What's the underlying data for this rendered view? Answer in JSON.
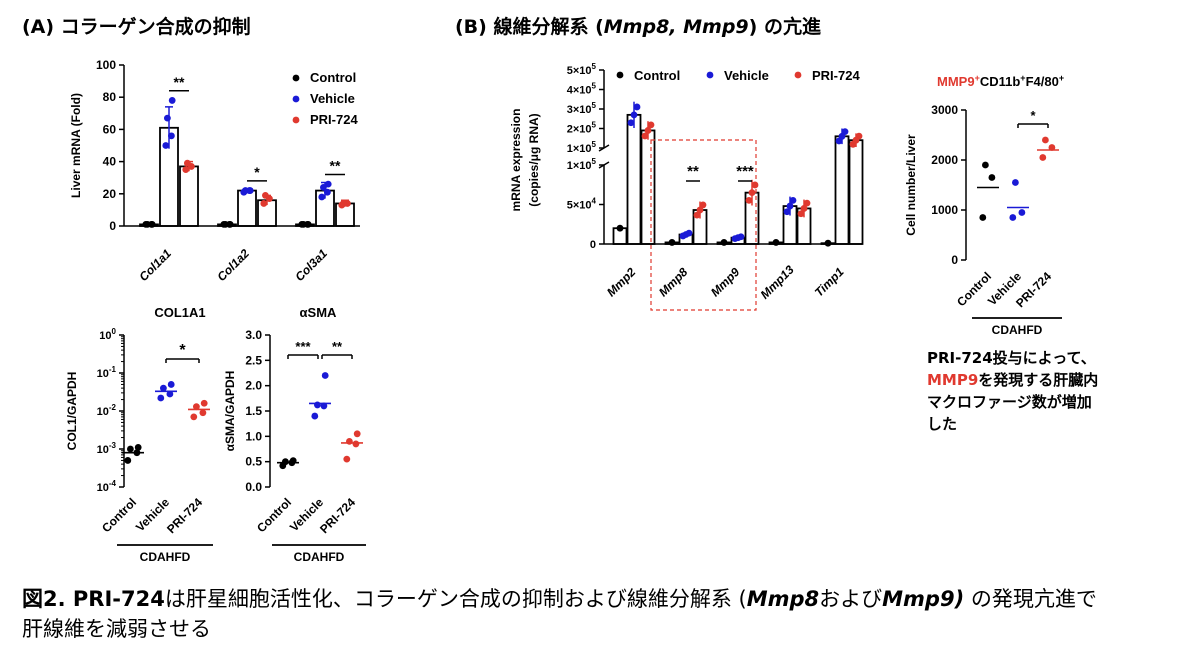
{
  "panel_a_title": "(A) コラーゲン合成の抑制",
  "panel_b_title_pre": "(B) 線維分解系 (",
  "panel_b_title_italic": "Mmp8, Mmp9",
  "panel_b_title_post": ") の亢進",
  "caption": {
    "p1": "図2. PRI-724",
    "p2": "は肝星細胞活性化、コラーゲン合成の抑制および線維分解系 (",
    "p3": "Mmp8",
    "p4": "および",
    "p5": "Mmp9)",
    "p6": " の発現亢進で",
    "line2": "肝線維を減弱させる"
  },
  "note": {
    "line1": "PRI-724投与によって、",
    "red": "MMP9",
    "line2_rest": "を発現する肝臓内",
    "line3": "マクロファージ数が増加",
    "line4": "した"
  },
  "colors": {
    "control": "#000000",
    "vehicle": "#1a1ad6",
    "pri724": "#e0392f"
  },
  "chart_data": [
    {
      "id": "liver-mrna",
      "type": "bar",
      "ylabel": "Liver mRNA (Fold)",
      "ylim": [
        0,
        100
      ],
      "yticks": [
        0,
        20,
        40,
        60,
        80,
        100
      ],
      "categories": [
        "Col1a1",
        "Col1a2",
        "Col3a1"
      ],
      "legend": {
        "position": "top-right",
        "entries": [
          "Control",
          "Vehicle",
          "PRI-724"
        ]
      },
      "series": [
        {
          "name": "Control",
          "values": [
            1,
            1,
            1
          ]
        },
        {
          "name": "Vehicle",
          "values": [
            61,
            22,
            22
          ]
        },
        {
          "name": "PRI-724",
          "values": [
            37,
            16,
            14
          ]
        }
      ],
      "errors": [
        [
          0,
          0,
          0
        ],
        [
          13,
          1,
          5
        ],
        [
          3,
          3,
          2
        ]
      ],
      "points": [
        [
          [
            1,
            1,
            1,
            1
          ],
          [
            1,
            1,
            1,
            1
          ],
          [
            1,
            1,
            1,
            1
          ]
        ],
        [
          [
            50,
            56,
            67,
            78
          ],
          [
            21,
            22,
            22,
            22
          ],
          [
            18,
            21,
            24,
            26
          ]
        ],
        [
          [
            35,
            37,
            39
          ],
          [
            14,
            17,
            19
          ],
          [
            13,
            14,
            14
          ]
        ]
      ],
      "significance": [
        {
          "category": 0,
          "label": "**"
        },
        {
          "category": 1,
          "label": "*"
        },
        {
          "category": 2,
          "label": "**"
        }
      ]
    },
    {
      "id": "col1a1",
      "type": "scatter",
      "title": "COL1A1",
      "ylabel": "COL1/GAPDH",
      "yscale": "log",
      "ylim": [
        0.0001,
        1
      ],
      "yticks": [
        "10^0",
        "10^-1",
        "10^-2",
        "10^-3",
        "10^-4"
      ],
      "categories": [
        "Control",
        "Vehicle",
        "PRI-724"
      ],
      "group_label": "CDAHFD",
      "points": [
        [
          0.0005,
          0.0008,
          0.001,
          0.0011
        ],
        [
          0.022,
          0.028,
          0.04,
          0.05
        ],
        [
          0.007,
          0.009,
          0.013,
          0.016
        ]
      ],
      "means": [
        0.0008,
        0.033,
        0.011
      ],
      "significance": [
        {
          "from": 1,
          "to": 2,
          "label": "*"
        }
      ]
    },
    {
      "id": "asma",
      "type": "scatter",
      "title": "αSMA",
      "ylabel": "αSMA/GAPDH",
      "ylim": [
        0,
        3.0
      ],
      "yticks": [
        "0.0",
        "0.5",
        "1.0",
        "1.5",
        "2.0",
        "2.5",
        "3.0"
      ],
      "categories": [
        "Control",
        "Vehicle",
        "PRI-724"
      ],
      "group_label": "CDAHFD",
      "points": [
        [
          0.42,
          0.48,
          0.5,
          0.52
        ],
        [
          1.4,
          1.6,
          1.62,
          2.2
        ],
        [
          0.55,
          0.85,
          0.9,
          1.05
        ]
      ],
      "means": [
        0.48,
        1.65,
        0.87
      ],
      "significance": [
        {
          "from": 0,
          "to": 1,
          "label": "***"
        },
        {
          "from": 1,
          "to": 2,
          "label": "**"
        }
      ]
    },
    {
      "id": "mmp-expression",
      "type": "bar",
      "ylabel": "mRNA expression (copies/μg RNA)",
      "axis_break": true,
      "upper_yticks": [
        "5×10^5",
        "4×10^5",
        "3×10^5",
        "2×10^5",
        "1×10^5"
      ],
      "lower_yticks": [
        "1×10^5",
        "5×10^4",
        "0"
      ],
      "categories": [
        "Mmp2",
        "Mmp8",
        "Mmp9",
        "Mmp13",
        "Timp1"
      ],
      "legend": {
        "position": "top",
        "entries": [
          "Control",
          "Vehicle",
          "PRI-724"
        ]
      },
      "series": [
        {
          "name": "Control",
          "values": [
            20000,
            2000,
            2000,
            2000,
            1000
          ]
        },
        {
          "name": "Vehicle",
          "values": [
            270000,
            12000,
            8000,
            48000,
            160000
          ]
        },
        {
          "name": "PRI-724",
          "values": [
            190000,
            43000,
            65000,
            45000,
            140000
          ]
        }
      ],
      "significance": [
        {
          "category": 1,
          "label": "**"
        },
        {
          "category": 2,
          "label": "***"
        }
      ]
    },
    {
      "id": "mmp9-cells",
      "type": "scatter",
      "title_red": "MMP9",
      "title_rest_1": "CD11b",
      "title_rest_2": "F4/80",
      "ylabel": "Cell number/Liver",
      "ylim": [
        0,
        3000
      ],
      "yticks": [
        "0",
        "1000",
        "2000",
        "3000"
      ],
      "categories": [
        "Control",
        "Vehicle",
        "PRI-724"
      ],
      "group_label": "CDAHFD",
      "points": [
        [
          850,
          1650,
          1900
        ],
        [
          850,
          950,
          1550
        ],
        [
          2050,
          2250,
          2400
        ]
      ],
      "means": [
        1450,
        1050,
        2200
      ],
      "significance": [
        {
          "from": 1,
          "to": 2,
          "label": "*"
        }
      ]
    }
  ]
}
